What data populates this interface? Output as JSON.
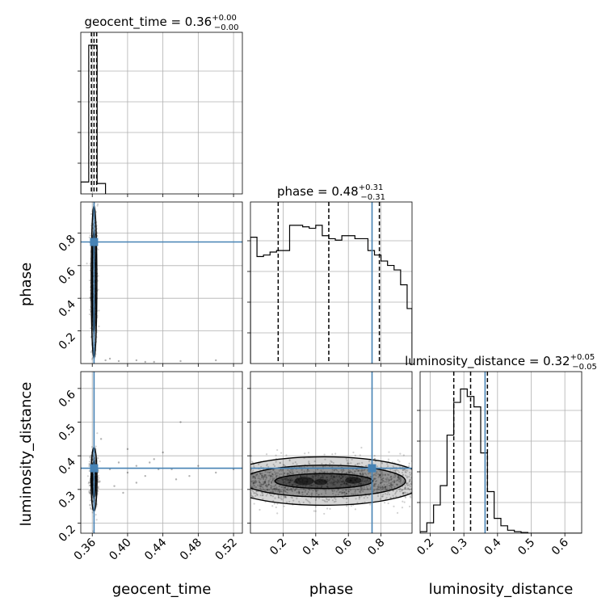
{
  "colors": {
    "truth": "#4682b4",
    "hist": "#000000",
    "grid": "#b0b0b0",
    "density": "#000000"
  },
  "parameters": [
    {
      "name": "geocent_time",
      "title": "geocent_time = 0.36",
      "title_sup": "+0.00",
      "title_sub": "−0.00"
    },
    {
      "name": "phase",
      "title": "phase = 0.48",
      "title_sup": "+0.31",
      "title_sub": "−0.31"
    },
    {
      "name": "luminosity_distance",
      "title": "luminosity_distance = 0.32",
      "title_sup": "+0.05",
      "title_sub": "−0.05"
    }
  ],
  "chart_data": {
    "type": "corner",
    "grid": true,
    "truths": {
      "geocent_time": 0.362,
      "phase": 0.745,
      "luminosity_distance": 0.363
    },
    "ranges": {
      "geocent_time": [
        0.347,
        0.53
      ],
      "phase": [
        0.0,
        0.99
      ],
      "luminosity_distance": [
        0.17,
        0.65
      ]
    },
    "ticks": {
      "geocent_time": {
        "values": [
          0.36,
          0.4,
          0.44,
          0.48,
          0.52
        ],
        "labels": [
          "0.36",
          "0.40",
          "0.44",
          "0.48",
          "0.52"
        ]
      },
      "phase": {
        "values": [
          0.2,
          0.4,
          0.6,
          0.8
        ],
        "labels": [
          "0.2",
          "0.4",
          "0.6",
          "0.8"
        ]
      },
      "luminosity_distance": {
        "values": [
          0.2,
          0.3,
          0.4,
          0.5,
          0.6
        ],
        "labels": [
          "0.2",
          "0.3",
          "0.4",
          "0.5",
          "0.6"
        ]
      }
    },
    "quantiles": {
      "geocent_time": [
        0.359,
        0.362,
        0.365
      ],
      "phase": [
        0.17,
        0.48,
        0.79
      ],
      "luminosity_distance": [
        0.27,
        0.32,
        0.37
      ]
    },
    "histograms": {
      "geocent_time": {
        "edges": [
          0.347,
          0.356,
          0.3655,
          0.375
        ],
        "counts": [
          0.08,
          1.0,
          0.07
        ]
      },
      "phase": {
        "edges": [
          0.0,
          0.04,
          0.08,
          0.12,
          0.16,
          0.2,
          0.24,
          0.28,
          0.32,
          0.36,
          0.4,
          0.44,
          0.48,
          0.52,
          0.56,
          0.6,
          0.64,
          0.68,
          0.72,
          0.76,
          0.8,
          0.84,
          0.88,
          0.92,
          0.96,
          0.99
        ],
        "counts": [
          0.85,
          0.72,
          0.73,
          0.75,
          0.76,
          0.76,
          0.93,
          0.93,
          0.92,
          0.91,
          0.93,
          0.86,
          0.84,
          0.83,
          0.86,
          0.86,
          0.84,
          0.84,
          0.76,
          0.73,
          0.69,
          0.66,
          0.63,
          0.53,
          0.37
        ]
      },
      "luminosity_distance": {
        "edges": [
          0.17,
          0.19,
          0.21,
          0.23,
          0.25,
          0.27,
          0.29,
          0.31,
          0.33,
          0.35,
          0.37,
          0.39,
          0.41,
          0.43,
          0.45,
          0.47,
          0.49,
          0.51,
          0.53,
          0.55,
          0.57,
          0.59,
          0.61,
          0.63,
          0.65
        ],
        "counts": [
          0.01,
          0.07,
          0.19,
          0.32,
          0.66,
          0.88,
          0.97,
          0.92,
          0.85,
          0.54,
          0.28,
          0.1,
          0.05,
          0.02,
          0.01,
          0.005,
          0,
          0,
          0,
          0,
          0,
          0,
          0,
          0
        ]
      }
    },
    "panels_2d": [
      {
        "x": "geocent_time",
        "y": "phase",
        "center": [
          0.362,
          0.5
        ],
        "spread": [
          0.002,
          0.24
        ],
        "contour_levels": [
          {
            "rx": 0.0032,
            "ry": 0.47
          },
          {
            "rx": 0.0018,
            "ry": 0.32
          }
        ],
        "outliers": [
          [
            0.375,
            0.02
          ],
          [
            0.39,
            0.015
          ],
          [
            0.41,
            0.02
          ],
          [
            0.43,
            0.01
          ],
          [
            0.46,
            0.015
          ],
          [
            0.5,
            0.02
          ],
          [
            0.38,
            0.03
          ],
          [
            0.42,
            0.01
          ]
        ]
      },
      {
        "x": "geocent_time",
        "y": "luminosity_distance",
        "center": [
          0.362,
          0.33
        ],
        "spread": [
          0.0022,
          0.04
        ],
        "contour_levels": [
          {
            "rx": 0.0034,
            "ry": 0.095
          },
          {
            "rx": 0.002,
            "ry": 0.055
          }
        ],
        "outliers": [
          [
            0.38,
            0.36
          ],
          [
            0.39,
            0.38
          ],
          [
            0.4,
            0.35
          ],
          [
            0.41,
            0.37
          ],
          [
            0.42,
            0.34
          ],
          [
            0.43,
            0.39
          ],
          [
            0.44,
            0.41
          ],
          [
            0.45,
            0.36
          ],
          [
            0.46,
            0.5
          ],
          [
            0.47,
            0.34
          ],
          [
            0.4,
            0.42
          ],
          [
            0.385,
            0.31
          ],
          [
            0.37,
            0.45
          ],
          [
            0.395,
            0.29
          ],
          [
            0.425,
            0.38
          ],
          [
            0.455,
            0.33
          ],
          [
            0.48,
            0.37
          ],
          [
            0.5,
            0.35
          ],
          [
            0.52,
            0.36
          ],
          [
            0.41,
            0.32
          ],
          [
            0.435,
            0.36
          ]
        ]
      },
      {
        "x": "phase",
        "y": "luminosity_distance",
        "center": [
          0.45,
          0.325
        ],
        "spread": [
          0.3,
          0.032
        ],
        "contour_levels": [
          {
            "rx": 0.62,
            "ry": 0.072
          },
          {
            "rx": 0.5,
            "ry": 0.047
          },
          {
            "rx": 0.3,
            "ry": 0.022
          }
        ],
        "outliers": []
      }
    ]
  }
}
